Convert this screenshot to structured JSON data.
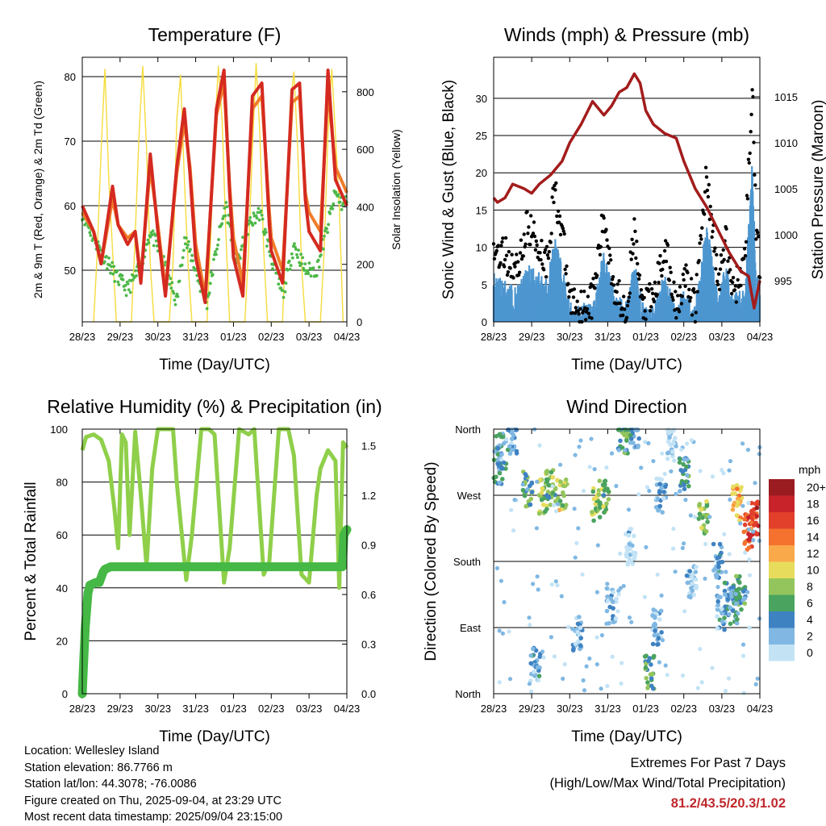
{
  "time_ticks": [
    "28/23",
    "29/23",
    "30/23",
    "31/23",
    "01/23",
    "02/23",
    "03/23",
    "04/23"
  ],
  "station": {
    "location": "Location: Wellesley Island",
    "elevation": "Station elevation: 86.7766 m",
    "latlon": "Station lat/lon: 44.3078; -76.0086",
    "created": "Figure created on Thu, 2025-09-04, at 23:29 UTC",
    "latest": "Most recent data timestamp: 2025/09/04 23:15:00"
  },
  "extremes": {
    "title": "Extremes For Past 7 Days",
    "subtitle": "(High/Low/Max Wind/Total Precipitation)",
    "values": "81.2/43.5/20.3/1.02"
  },
  "colors": {
    "temp_2m": "#d42a20",
    "temp_9m": "#f07d2a",
    "dewpoint": "#4db848",
    "solar": "#f5dc3c",
    "wind": "#4d96d0",
    "gust": "#000000",
    "pressure": "#a31c1c",
    "rh": "#8fcf4a",
    "precip": "#45b845"
  },
  "chart_data": [
    {
      "type": "line",
      "title": "Temperature (F)",
      "xlabel": "Time (Day/UTC)",
      "ylabel": "2m & 9m T (Red, Orange) & 2m Td (Green)",
      "y2label": "Solar Insolation (Yellow)",
      "x_range": [
        0,
        7
      ],
      "x_ticks": [
        "28/23",
        "29/23",
        "30/23",
        "31/23",
        "01/23",
        "02/23",
        "03/23",
        "04/23"
      ],
      "ylim": [
        42,
        83
      ],
      "y_ticks": [
        50,
        60,
        70,
        80
      ],
      "y2lim": [
        0,
        920
      ],
      "y2_ticks": [
        0,
        200,
        400,
        600,
        800
      ],
      "grid": true,
      "series": [
        {
          "axis": "left",
          "x": [
            0,
            0.3,
            0.5,
            0.8,
            0.95,
            1.2,
            1.4,
            1.55,
            1.8,
            2.0,
            2.2,
            2.5,
            2.7,
            2.85,
            3.0,
            3.25,
            3.55,
            3.75,
            3.9,
            4.0,
            4.25,
            4.5,
            4.75,
            4.95,
            5.0,
            5.3,
            5.55,
            5.75,
            5.9,
            6.0,
            6.3,
            6.5,
            6.7,
            6.85,
            7.0
          ],
          "values": [
            60,
            56,
            51,
            63,
            57,
            54,
            56,
            48,
            68,
            56,
            46,
            66,
            75,
            65,
            52,
            45,
            75,
            81,
            62,
            52,
            46,
            77,
            79,
            57,
            53,
            48,
            78,
            79,
            61,
            56,
            53,
            81,
            64,
            62,
            60
          ]
        },
        {
          "axis": "left",
          "x": [
            0,
            0.3,
            0.5,
            0.8,
            0.95,
            1.2,
            1.4,
            1.55,
            1.8,
            2.0,
            2.2,
            2.5,
            2.7,
            2.85,
            3.0,
            3.25,
            3.55,
            3.75,
            3.9,
            4.0,
            4.25,
            4.5,
            4.75,
            4.95,
            5.0,
            5.3,
            5.55,
            5.75,
            5.9,
            6.0,
            6.3,
            6.5,
            6.7,
            6.85,
            7.0
          ],
          "values": [
            59,
            56,
            51,
            61,
            57,
            55,
            56,
            49,
            66,
            57,
            47,
            65,
            73,
            66,
            54,
            46,
            74,
            79,
            63,
            55,
            48,
            75,
            77,
            59,
            55,
            50,
            76,
            77,
            62,
            59,
            56,
            78,
            66,
            64,
            62
          ]
        },
        {
          "axis": "left",
          "x": [
            0,
            0.3,
            0.6,
            0.9,
            1.2,
            1.5,
            1.8,
            2.1,
            2.5,
            2.7,
            2.9,
            3.1,
            3.3,
            3.6,
            3.8,
            4.1,
            4.4,
            4.7,
            5.0,
            5.3,
            5.6,
            5.9,
            6.2,
            6.5,
            6.7,
            6.9,
            7.0
          ],
          "values": [
            59,
            55,
            52,
            49,
            47,
            50,
            56,
            52,
            45,
            55,
            52,
            48,
            45,
            55,
            60,
            51,
            57,
            59,
            52,
            46,
            54,
            50,
            50,
            57,
            62,
            60,
            61
          ]
        },
        {
          "axis": "right",
          "x": [
            0.3,
            0.4,
            0.5,
            0.6,
            0.7,
            0.8,
            0.9,
            1.3,
            1.4,
            1.5,
            1.6,
            1.7,
            1.8,
            1.9,
            2.3,
            2.4,
            2.5,
            2.6,
            2.7,
            2.8,
            2.9,
            3.3,
            3.4,
            3.5,
            3.6,
            3.7,
            3.8,
            3.9,
            4.3,
            4.4,
            4.5,
            4.6,
            4.7,
            4.8,
            4.9,
            5.3,
            5.4,
            5.5,
            5.6,
            5.7,
            5.8,
            5.9,
            6.3,
            6.4,
            6.5,
            6.6,
            6.7,
            6.8,
            6.9
          ],
          "values": [
            0,
            250,
            600,
            880,
            500,
            250,
            0,
            0,
            300,
            650,
            890,
            600,
            200,
            0,
            0,
            200,
            700,
            860,
            500,
            200,
            0,
            0,
            300,
            650,
            890,
            700,
            300,
            0,
            0,
            250,
            600,
            900,
            650,
            250,
            0,
            0,
            350,
            750,
            870,
            600,
            200,
            0,
            0,
            250,
            650,
            880,
            650,
            400,
            0
          ]
        }
      ]
    },
    {
      "type": "line",
      "title": "Winds (mph) & Pressure (mb)",
      "xlabel": "Time (Day/UTC)",
      "ylabel": "Sonic Wind & Gust (Blue, Black)",
      "y2label": "Station Pressure (Maroon)",
      "x_range": [
        0,
        7
      ],
      "x_ticks": [
        "28/23",
        "29/23",
        "30/23",
        "31/23",
        "01/23",
        "02/23",
        "03/23",
        "04/23"
      ],
      "ylim": [
        0,
        35.5
      ],
      "y_ticks": [
        0,
        5,
        10,
        15,
        20,
        25,
        30
      ],
      "y2lim": [
        990.5,
        1019.3
      ],
      "y2_ticks": [
        995,
        1000,
        1005,
        1010,
        1015
      ],
      "grid": true,
      "series": [
        {
          "axis": "left",
          "x": [
            0,
            0.3,
            0.6,
            0.9,
            1.2,
            1.4,
            1.6,
            1.8,
            2.0,
            2.3,
            2.6,
            2.9,
            3.2,
            3.5,
            3.7,
            3.9,
            4.2,
            4.5,
            4.8,
            5.0,
            5.3,
            5.6,
            5.9,
            6.1,
            6.3,
            6.6,
            6.8,
            6.9,
            7.0
          ],
          "values": [
            5,
            4,
            3,
            6,
            5,
            4,
            10,
            6,
            1,
            1,
            1,
            8,
            2,
            1,
            7,
            1,
            1,
            5,
            1,
            3,
            1,
            12,
            2,
            6,
            2,
            3,
            20,
            6,
            3
          ]
        },
        {
          "axis": "left",
          "x": [
            0,
            0.3,
            0.6,
            0.9,
            1.2,
            1.4,
            1.6,
            1.8,
            2.0,
            2.3,
            2.6,
            2.9,
            3.2,
            3.5,
            3.7,
            3.9,
            4.2,
            4.5,
            4.8,
            5.0,
            5.3,
            5.6,
            5.9,
            6.1,
            6.3,
            6.6,
            6.8,
            6.9,
            7.0
          ],
          "values": [
            10,
            9,
            7,
            13,
            10,
            8,
            18,
            12,
            3,
            2,
            3,
            14,
            4,
            2,
            12,
            2,
            3,
            10,
            2,
            6,
            2,
            20,
            5,
            11,
            4,
            8,
            32,
            12,
            7
          ]
        },
        {
          "axis": "right",
          "x": [
            0,
            0.1,
            0.3,
            0.5,
            0.8,
            1.0,
            1.2,
            1.5,
            1.8,
            2.0,
            2.3,
            2.6,
            2.9,
            3.1,
            3.3,
            3.5,
            3.7,
            3.85,
            4.0,
            4.2,
            4.5,
            4.8,
            5.0,
            5.3,
            5.6,
            5.9,
            6.2,
            6.5,
            6.7,
            6.85,
            7.0
          ],
          "values": [
            1004,
            1003.5,
            1004,
            1005.5,
            1005,
            1004.5,
            1005.5,
            1006.5,
            1008,
            1010,
            1012,
            1014.5,
            1013,
            1014,
            1015.5,
            1016,
            1017.5,
            1016.5,
            1013.5,
            1012,
            1011,
            1010.5,
            1008,
            1005,
            1003,
            1000.5,
            998,
            996,
            995.5,
            992,
            995
          ]
        }
      ]
    },
    {
      "type": "line",
      "title": "Relative Humidity (%) & Precipitation (in)",
      "xlabel": "Time (Day/UTC)",
      "ylabel": "Percent & Total Rainfall",
      "x_range": [
        0,
        7
      ],
      "x_ticks": [
        "28/23",
        "29/23",
        "30/23",
        "31/23",
        "01/23",
        "02/23",
        "03/23",
        "04/23"
      ],
      "ylim": [
        0,
        100
      ],
      "y_ticks": [
        0,
        20,
        40,
        60,
        80,
        100
      ],
      "y2lim": [
        0,
        1.6
      ],
      "y2_ticks": [
        "0.0",
        "0.3",
        "0.6",
        "0.9",
        "1.2",
        "1.5"
      ],
      "grid": true,
      "series": [
        {
          "axis": "left",
          "x": [
            0,
            0.1,
            0.3,
            0.5,
            0.7,
            0.85,
            0.95,
            1.05,
            1.15,
            1.25,
            1.4,
            1.55,
            1.7,
            1.85,
            2.0,
            2.2,
            2.4,
            2.5,
            2.75,
            2.9,
            3.15,
            3.35,
            3.5,
            3.75,
            3.9,
            4.15,
            4.4,
            4.55,
            4.8,
            4.95,
            5.2,
            5.45,
            5.6,
            5.8,
            6.0,
            6.2,
            6.3,
            6.5,
            6.7,
            6.8,
            6.9,
            7.0
          ],
          "values": [
            92,
            97,
            98,
            96,
            88,
            70,
            55,
            98,
            95,
            60,
            99,
            75,
            48,
            85,
            100,
            100,
            100,
            80,
            43,
            60,
            100,
            100,
            98,
            42,
            55,
            100,
            98,
            100,
            45,
            50,
            100,
            100,
            90,
            45,
            42,
            75,
            85,
            92,
            88,
            40,
            95,
            93
          ]
        },
        {
          "axis": "left",
          "x": [
            0,
            0.03,
            0.08,
            0.15,
            0.2,
            0.35,
            0.45,
            0.55,
            0.6,
            0.75,
            0.9,
            1.5,
            2.0,
            3.0,
            4.0,
            5.0,
            6.0,
            6.88,
            6.92,
            7.0
          ],
          "values": [
            0,
            10,
            25,
            38,
            41,
            42,
            42,
            46,
            47,
            48,
            48,
            48,
            48,
            48,
            48,
            48,
            48,
            48,
            60,
            62
          ]
        }
      ]
    },
    {
      "type": "scatter",
      "title": "Wind Direction",
      "xlabel": "Time (Day/UTC)",
      "ylabel": "Direction (Colored By Speed)",
      "x_range": [
        0,
        7
      ],
      "x_ticks": [
        "28/23",
        "29/23",
        "30/23",
        "31/23",
        "01/23",
        "02/23",
        "03/23",
        "04/23"
      ],
      "y_ticks": [
        "North",
        "East",
        "South",
        "West",
        "North"
      ],
      "ylim": [
        0,
        360
      ],
      "grid": true,
      "legend": {
        "position": "right",
        "title": "mph",
        "labels": [
          "20+",
          "18",
          "16",
          "14",
          "12",
          "10",
          "8",
          "6",
          "4",
          "2",
          "0"
        ],
        "colors": [
          "#9b1c20",
          "#c8232a",
          "#e2402b",
          "#f4712e",
          "#f9a94a",
          "#e7dc5c",
          "#94c55c",
          "#4aa35f",
          "#3f82c2",
          "#80b8e3",
          "#c3e3f5"
        ]
      },
      "series": [
        {
          "name": "clusters",
          "x": [
            0.2,
            0.5,
            0.9,
            1.3,
            1.5,
            1.8,
            2.7,
            2.9,
            3.4,
            3.7,
            4.4,
            4.7,
            5.0,
            5.5,
            5.9,
            6.2,
            6.5,
            6.7,
            6.9,
            0.1,
            1.1,
            2.2,
            3.1,
            3.6,
            4.1,
            4.3,
            5.2,
            6.0,
            6.3,
            6.4
          ],
          "y": [
            330,
            350,
            280,
            270,
            280,
            270,
            260,
            270,
            350,
            360,
            270,
            340,
            300,
            240,
            180,
            130,
            135,
            220,
            240,
            310,
            40,
            80,
            120,
            200,
            30,
            90,
            150,
            110,
            120,
            260
          ],
          "speed": [
            4,
            3,
            6,
            8,
            7,
            9,
            8,
            7,
            6,
            4,
            2,
            1,
            5,
            8,
            3,
            4,
            5,
            15,
            17,
            4,
            3,
            2,
            2,
            1,
            6,
            2,
            1,
            3,
            4,
            12
          ]
        }
      ]
    }
  ]
}
